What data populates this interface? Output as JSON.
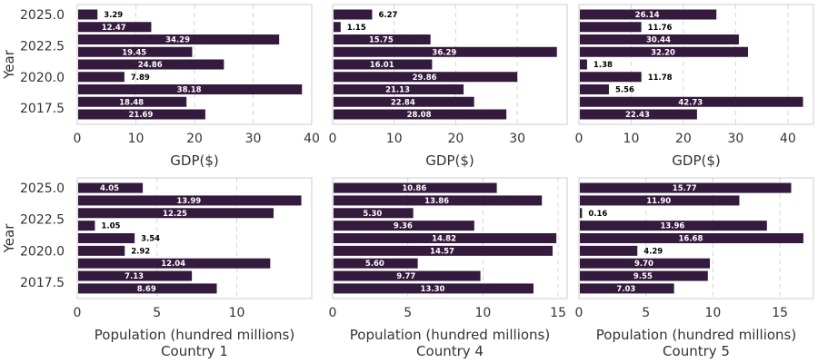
{
  "colors": {
    "bar": "#341a3d",
    "grid": "#d6d6d6",
    "frame": "#cccccc",
    "text": "#333333",
    "label_inside": "#ffffff",
    "label_outside": "#000000"
  },
  "chart_data": [
    {
      "type": "bar",
      "orientation": "horizontal",
      "row": 0,
      "col": 0,
      "categories": [
        2025,
        2024,
        2023,
        2022,
        2021,
        2020,
        2019,
        2018,
        2017
      ],
      "values": [
        3.29,
        12.47,
        34.29,
        19.45,
        24.86,
        7.89,
        38.18,
        18.48,
        21.69
      ],
      "xlabel": "GDP($)",
      "ylabel": "Year",
      "title": "",
      "xlim": [
        0,
        40
      ],
      "xticks": [
        0,
        10,
        20,
        30,
        40
      ],
      "ylim": [
        2016.2,
        2025.8
      ],
      "yticks": [
        2025.0,
        2022.5,
        2020.0,
        2017.5
      ],
      "grid": "x"
    },
    {
      "type": "bar",
      "orientation": "horizontal",
      "row": 0,
      "col": 1,
      "categories": [
        2025,
        2024,
        2023,
        2022,
        2021,
        2020,
        2019,
        2018,
        2017
      ],
      "values": [
        6.27,
        1.15,
        15.75,
        36.29,
        16.01,
        29.86,
        21.13,
        22.84,
        28.08
      ],
      "xlabel": "GDP($)",
      "ylabel": "",
      "title": "",
      "xlim": [
        0,
        38.1
      ],
      "xticks": [
        0,
        10,
        20,
        30
      ],
      "ylim": [
        2016.2,
        2025.8
      ],
      "yticks": [],
      "grid": "x"
    },
    {
      "type": "bar",
      "orientation": "horizontal",
      "row": 0,
      "col": 2,
      "categories": [
        2025,
        2024,
        2023,
        2022,
        2021,
        2020,
        2019,
        2018,
        2017
      ],
      "values": [
        26.14,
        11.76,
        30.44,
        32.2,
        1.38,
        11.78,
        5.56,
        42.73,
        22.43
      ],
      "xlabel": "GDP($)",
      "ylabel": "",
      "title": "",
      "xlim": [
        0,
        44.9
      ],
      "xticks": [
        0,
        10,
        20,
        30,
        40
      ],
      "ylim": [
        2016.2,
        2025.8
      ],
      "yticks": [],
      "grid": "x"
    },
    {
      "type": "bar",
      "orientation": "horizontal",
      "row": 1,
      "col": 0,
      "categories": [
        2025,
        2024,
        2023,
        2022,
        2021,
        2020,
        2019,
        2018,
        2017
      ],
      "values": [
        4.05,
        13.99,
        12.25,
        1.05,
        3.54,
        2.92,
        12.04,
        7.13,
        8.69
      ],
      "xlabel": "Population (hundred millions)",
      "ylabel": "Year",
      "title": "Country 1",
      "xlim": [
        0,
        14.7
      ],
      "xticks": [
        0,
        5,
        10
      ],
      "ylim": [
        2016.2,
        2025.8
      ],
      "yticks": [
        2025.0,
        2022.5,
        2020.0,
        2017.5
      ],
      "grid": "x"
    },
    {
      "type": "bar",
      "orientation": "horizontal",
      "row": 1,
      "col": 1,
      "categories": [
        2025,
        2024,
        2023,
        2022,
        2021,
        2020,
        2019,
        2018,
        2017
      ],
      "values": [
        10.86,
        13.86,
        5.3,
        9.36,
        14.82,
        14.57,
        5.6,
        9.77,
        13.3
      ],
      "xlabel": "Population (hundred millions)",
      "ylabel": "",
      "title": "Country 4",
      "xlim": [
        0,
        15.6
      ],
      "xticks": [
        0,
        5,
        10,
        15
      ],
      "ylim": [
        2016.2,
        2025.8
      ],
      "yticks": [],
      "grid": "x"
    },
    {
      "type": "bar",
      "orientation": "horizontal",
      "row": 1,
      "col": 2,
      "categories": [
        2025,
        2024,
        2023,
        2022,
        2021,
        2020,
        2019,
        2018,
        2017
      ],
      "values": [
        15.77,
        11.9,
        0.16,
        13.96,
        16.68,
        4.29,
        9.7,
        9.55,
        7.03
      ],
      "xlabel": "Population (hundred millions)",
      "ylabel": "",
      "title": "Country 5",
      "xlim": [
        0,
        17.5
      ],
      "xticks": [
        0,
        5,
        10,
        15
      ],
      "ylim": [
        2016.2,
        2025.8
      ],
      "yticks": [],
      "grid": "x"
    }
  ]
}
